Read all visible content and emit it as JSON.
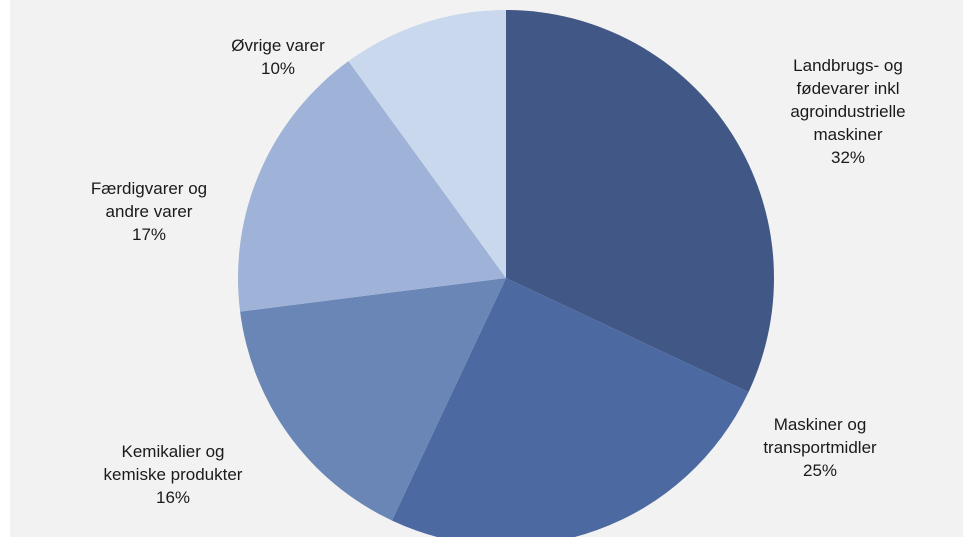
{
  "chart_data": {
    "type": "pie",
    "title": "",
    "start_angle_deg": 0,
    "direction": "clockwise",
    "slices": [
      {
        "label_lines": [
          "Landbrugs- og",
          "fødevarer inkl",
          "agroindustrielle",
          "maskiner"
        ],
        "percent_label": "32%",
        "value": 32,
        "color": "#415886"
      },
      {
        "label_lines": [
          "Maskiner og",
          "transportmidler"
        ],
        "percent_label": "25%",
        "value": 25,
        "color": "#4c6aa1"
      },
      {
        "label_lines": [
          "Kemikalier og",
          "kemiske produkter"
        ],
        "percent_label": "16%",
        "value": 16,
        "color": "#6a86b6"
      },
      {
        "label_lines": [
          "Færdigvarer og",
          "andre varer"
        ],
        "percent_label": "17%",
        "value": 17,
        "color": "#9fb2d7"
      },
      {
        "label_lines": [
          "Øvrige varer"
        ],
        "percent_label": "10%",
        "value": 10,
        "color": "#c9d8ec"
      }
    ]
  }
}
